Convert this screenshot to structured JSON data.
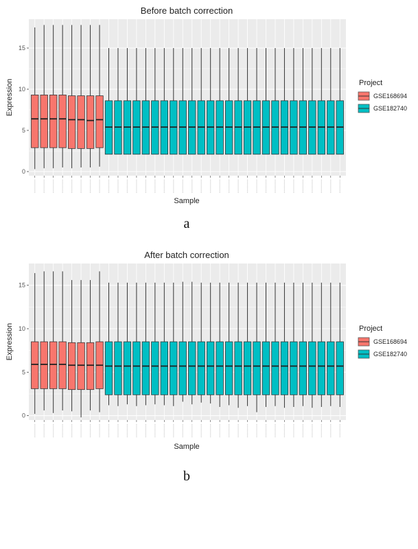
{
  "figure": {
    "legend_title": "Project",
    "panels": [
      {
        "letter": "a"
      },
      {
        "letter": "b"
      }
    ]
  },
  "chart_data": [
    {
      "type": "box",
      "title": "Before batch correction",
      "xlabel": "Sample",
      "ylabel": "Expression",
      "ylim": [
        -0.5,
        18.5
      ],
      "yticks": [
        0,
        5,
        10,
        15
      ],
      "grid": true,
      "legend": {
        "title": "Project",
        "position": "right",
        "entries": [
          {
            "name": "GSE168694",
            "color": "#F8766D"
          },
          {
            "name": "GSE182740",
            "color": "#00BFC4"
          }
        ]
      },
      "groups": [
        {
          "name": "GSE168694",
          "color": "#F8766D",
          "n": 8,
          "lower_whisker": [
            0.3,
            0.4,
            0.4,
            0.5,
            0.4,
            0.5,
            0.5,
            0.6
          ],
          "q1": [
            2.9,
            2.9,
            2.9,
            2.9,
            2.8,
            2.8,
            2.8,
            2.9
          ],
          "median": [
            6.4,
            6.4,
            6.4,
            6.4,
            6.3,
            6.3,
            6.2,
            6.3
          ],
          "q3": [
            9.3,
            9.3,
            9.3,
            9.3,
            9.2,
            9.2,
            9.2,
            9.2
          ],
          "upper_whisker": [
            17.5,
            17.8,
            17.8,
            17.8,
            17.8,
            17.8,
            17.8,
            17.8
          ]
        },
        {
          "name": "GSE182740",
          "color": "#00BFC4",
          "n": 26,
          "lower_whisker": 2.1,
          "q1": 2.1,
          "median": 5.4,
          "q3": 8.6,
          "upper_whisker": 15.0
        }
      ]
    },
    {
      "type": "box",
      "title": "After batch correction",
      "xlabel": "Sample",
      "ylabel": "Expression",
      "ylim": [
        -0.5,
        17.5
      ],
      "yticks": [
        0,
        5,
        10,
        15
      ],
      "grid": true,
      "legend": {
        "title": "Project",
        "position": "right",
        "entries": [
          {
            "name": "GSE168694",
            "color": "#F8766D"
          },
          {
            "name": "GSE182740",
            "color": "#00BFC4"
          }
        ]
      },
      "groups": [
        {
          "name": "GSE168694",
          "color": "#F8766D",
          "n": 8,
          "lower_whisker": [
            0.2,
            0.6,
            0.3,
            0.6,
            0.5,
            -0.2,
            0.6,
            0.4
          ],
          "q1": [
            3.1,
            3.1,
            3.1,
            3.1,
            3.0,
            3.0,
            3.0,
            3.1
          ],
          "median": [
            5.9,
            5.9,
            5.9,
            5.9,
            5.8,
            5.8,
            5.8,
            5.8
          ],
          "q3": [
            8.5,
            8.5,
            8.5,
            8.5,
            8.4,
            8.4,
            8.4,
            8.5
          ],
          "upper_whisker": [
            16.4,
            16.6,
            16.6,
            16.6,
            15.6,
            15.6,
            15.6,
            16.6
          ]
        },
        {
          "name": "GSE182740",
          "color": "#00BFC4",
          "n": 26,
          "lower_whisker": [
            1.2,
            1.1,
            1.3,
            1.1,
            1.2,
            1.3,
            1.2,
            1.1,
            1.6,
            1.3,
            1.5,
            1.4,
            1.0,
            1.2,
            0.9,
            1.1,
            0.4,
            1.0,
            1.1,
            0.9,
            1.0,
            1.1,
            0.9,
            1.0,
            1.1,
            1.0
          ],
          "q1": 2.4,
          "median": 5.7,
          "q3": 8.5,
          "upper_whisker": [
            15.3,
            15.3,
            15.3,
            15.3,
            15.3,
            15.3,
            15.3,
            15.3,
            15.4,
            15.4,
            15.3,
            15.3,
            15.3,
            15.3,
            15.3,
            15.3,
            15.3,
            15.3,
            15.3,
            15.3,
            15.3,
            15.3,
            15.3,
            15.3,
            15.3,
            15.3
          ]
        }
      ]
    }
  ]
}
